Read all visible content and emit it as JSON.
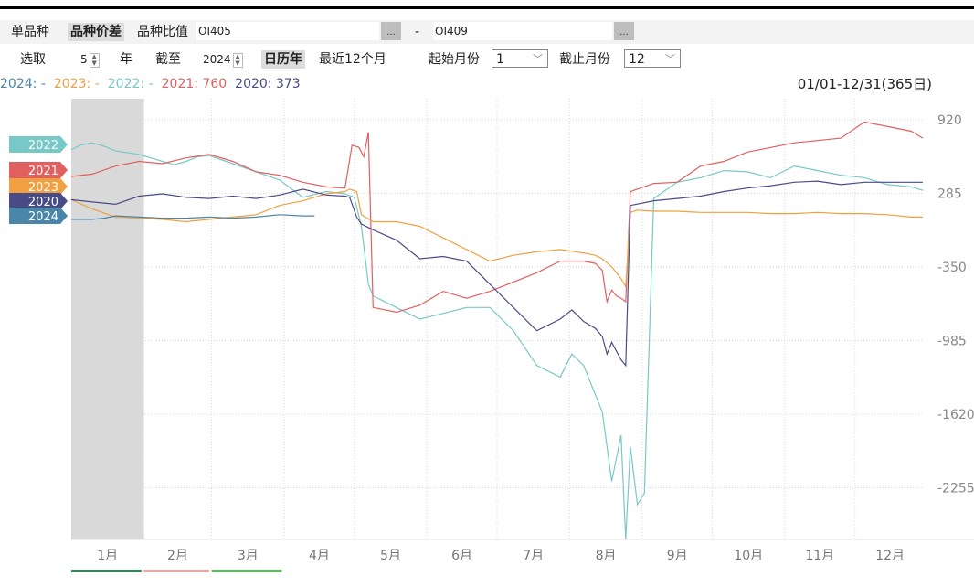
{
  "toolbar": {
    "tab_single": "单品种",
    "tab_spread": "品种价差",
    "tab_ratio": "品种比值",
    "contract_a": "OI405",
    "dots_a": "...",
    "dash": "-",
    "contract_b": "OI409",
    "dots_b": "...",
    "pick_label": "选取",
    "years_value": "5",
    "years_unit": "年",
    "until_label": "截至",
    "until_year": "2024",
    "calendar_year": "日历年",
    "last12": "最近12个月",
    "start_month_label": "起始月份",
    "start_month_value": "1",
    "end_month_label": "截止月份",
    "end_month_value": "12"
  },
  "legend": [
    {
      "label": "2024:",
      "value": "-",
      "color": "#4a86a8"
    },
    {
      "label": "2023:",
      "value": "-",
      "color": "#f0a040"
    },
    {
      "label": "2022:",
      "value": "-",
      "color": "#78c8c8"
    },
    {
      "label": "2021:",
      "value": "760",
      "color": "#e06060"
    },
    {
      "label": "2020:",
      "value": "373",
      "color": "#484c86"
    }
  ],
  "date_range": "01/01-12/31(365日)",
  "chart_data": {
    "type": "line",
    "title": "",
    "xlabel": "",
    "ylabel": "",
    "ylim": [
      -2700,
      1100
    ],
    "y_ticks": [
      920,
      285,
      -350,
      -985,
      -1620,
      -2255
    ],
    "months": [
      "1月",
      "2月",
      "3月",
      "4月",
      "5月",
      "6月",
      "7月",
      "8月",
      "9月",
      "10月",
      "11月",
      "12月"
    ],
    "highlight_month": "1月",
    "series": [
      {
        "name": "2022",
        "color": "#78c8c8",
        "x": [
          1,
          5,
          10,
          15,
          20,
          30,
          40,
          45,
          50,
          55,
          60,
          70,
          80,
          90,
          100,
          110,
          118,
          122,
          125,
          128,
          130,
          140,
          150,
          160,
          170,
          180,
          190,
          200,
          210,
          215,
          220,
          228,
          232,
          236,
          238,
          240,
          243,
          246,
          250,
          260,
          270,
          280,
          290,
          300,
          310,
          320,
          330,
          340,
          350,
          360,
          365
        ],
        "y": [
          660,
          700,
          720,
          690,
          650,
          620,
          560,
          530,
          560,
          600,
          610,
          540,
          470,
          400,
          250,
          300,
          280,
          250,
          0,
          -500,
          -600,
          -700,
          -800,
          -750,
          -700,
          -700,
          -900,
          -1200,
          -1300,
          -1100,
          -1200,
          -1600,
          -2200,
          -1800,
          -2700,
          -1900,
          -2400,
          -2300,
          240,
          380,
          420,
          480,
          470,
          420,
          520,
          480,
          440,
          420,
          360,
          340,
          310
        ]
      },
      {
        "name": "2021",
        "color": "#e06060",
        "x": [
          1,
          10,
          20,
          30,
          40,
          50,
          60,
          70,
          80,
          90,
          100,
          110,
          118,
          121,
          124,
          126,
          128,
          130,
          140,
          150,
          160,
          170,
          180,
          190,
          200,
          210,
          220,
          225,
          228,
          230,
          232,
          234,
          236,
          238,
          240,
          250,
          260,
          270,
          280,
          290,
          300,
          310,
          320,
          330,
          340,
          350,
          360,
          365
        ],
        "y": [
          430,
          450,
          520,
          560,
          540,
          590,
          620,
          560,
          470,
          440,
          380,
          340,
          330,
          700,
          680,
          600,
          810,
          -700,
          -740,
          -680,
          -560,
          -620,
          -560,
          -480,
          -400,
          -300,
          -300,
          -320,
          -380,
          -650,
          -550,
          -600,
          -620,
          -650,
          300,
          370,
          380,
          520,
          560,
          640,
          680,
          720,
          740,
          760,
          900,
          860,
          820,
          760
        ]
      },
      {
        "name": "2023",
        "color": "#f0a040",
        "x": [
          1,
          10,
          20,
          30,
          40,
          50,
          60,
          70,
          80,
          90,
          100,
          110,
          118,
          120,
          123,
          125,
          130,
          140,
          150,
          160,
          170,
          180,
          190,
          200,
          210,
          220,
          225,
          228,
          232,
          236,
          238,
          240,
          243,
          250,
          260,
          270,
          280,
          290,
          300,
          310,
          320,
          330,
          340,
          350,
          360,
          365
        ],
        "y": [
          230,
          150,
          80,
          70,
          60,
          40,
          60,
          80,
          100,
          180,
          220,
          280,
          300,
          320,
          300,
          100,
          40,
          40,
          0,
          -100,
          -200,
          -300,
          -250,
          -220,
          -200,
          -230,
          -250,
          -280,
          -350,
          -450,
          -520,
          120,
          140,
          130,
          130,
          120,
          120,
          120,
          110,
          110,
          120,
          110,
          110,
          100,
          80,
          80
        ]
      },
      {
        "name": "2020",
        "color": "#484c86",
        "x": [
          1,
          10,
          20,
          30,
          40,
          50,
          60,
          70,
          80,
          90,
          100,
          110,
          118,
          120,
          123,
          125,
          130,
          140,
          150,
          160,
          170,
          180,
          190,
          200,
          210,
          215,
          220,
          225,
          228,
          230,
          232,
          236,
          238,
          240,
          250,
          260,
          270,
          280,
          290,
          300,
          310,
          320,
          330,
          340,
          350,
          360,
          365
        ],
        "y": [
          230,
          210,
          190,
          260,
          280,
          250,
          240,
          260,
          240,
          270,
          320,
          270,
          260,
          250,
          80,
          20,
          -30,
          -120,
          -280,
          -260,
          -300,
          -500,
          -700,
          -900,
          -800,
          -720,
          -820,
          -880,
          -950,
          -1100,
          -1000,
          -1150,
          -1200,
          180,
          220,
          240,
          260,
          300,
          330,
          350,
          380,
          390,
          360,
          380,
          380,
          380,
          380
        ]
      },
      {
        "name": "2024",
        "color": "#4a86a8",
        "x": [
          1,
          5,
          10,
          15,
          20,
          30,
          40,
          50,
          60,
          70,
          80,
          90,
          100,
          105
        ],
        "y": [
          60,
          60,
          60,
          70,
          90,
          80,
          70,
          70,
          80,
          70,
          80,
          100,
          90,
          90
        ]
      }
    ]
  }
}
